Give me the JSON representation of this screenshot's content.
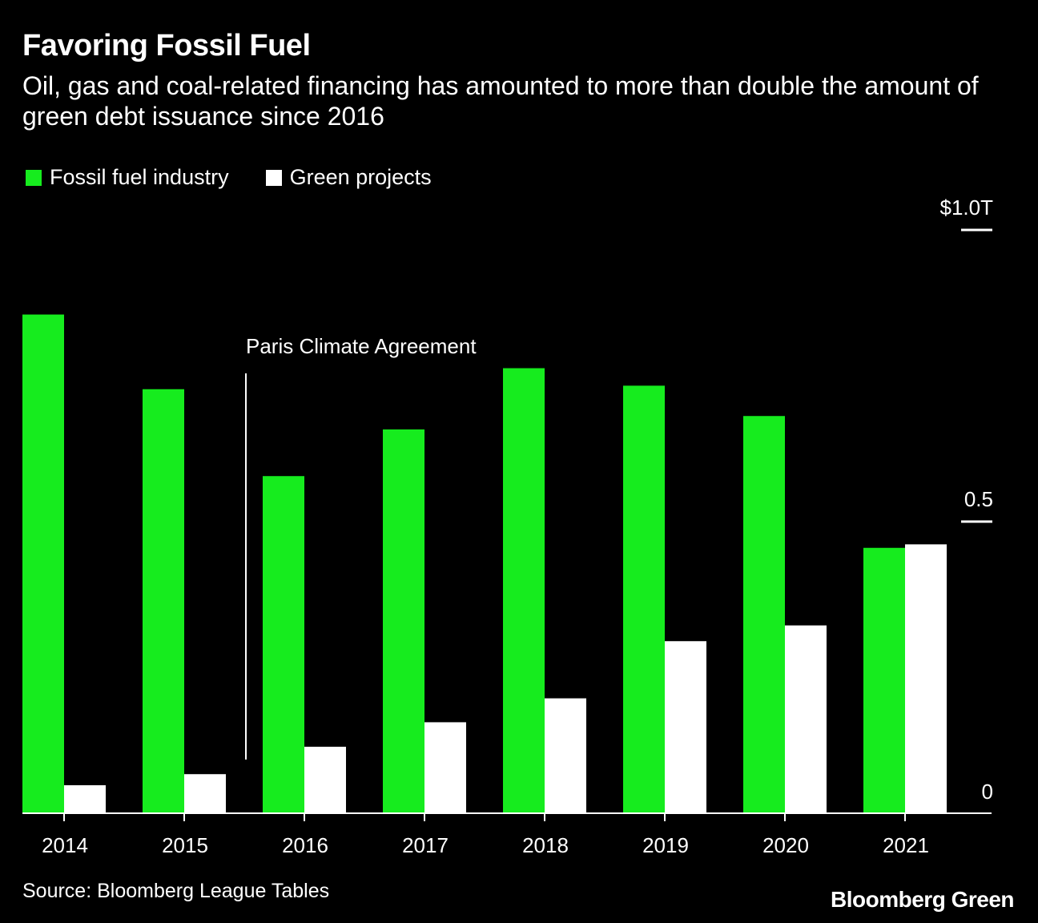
{
  "title": "Favoring Fossil Fuel",
  "subtitle": "Oil, gas and coal-related financing has amounted to more than double the amount of green debt issuance since 2016",
  "source": "Source: Bloomberg League Tables",
  "brand": "Bloomberg Green",
  "colors": {
    "fossil": "#16ec1e",
    "green": "#ffffff",
    "background": "#000000",
    "text": "#ffffff"
  },
  "chart_data": {
    "type": "bar",
    "title": "Favoring Fossil Fuel",
    "xlabel": "",
    "ylabel": "",
    "ylim": [
      0,
      1.0
    ],
    "y_ticks": [
      {
        "value": 0,
        "label": "0"
      },
      {
        "value": 0.5,
        "label": "0.5"
      },
      {
        "value": 1.0,
        "label": "$1.0T"
      }
    ],
    "categories": [
      "2014",
      "2015",
      "2016",
      "2017",
      "2018",
      "2019",
      "2020",
      "2021"
    ],
    "series": [
      {
        "name": "Fossil fuel industry",
        "color": "#16ec1e",
        "values": [
          0.855,
          0.727,
          0.578,
          0.658,
          0.763,
          0.733,
          0.681,
          0.455
        ]
      },
      {
        "name": "Green projects",
        "color": "#ffffff",
        "values": [
          0.048,
          0.067,
          0.114,
          0.156,
          0.197,
          0.295,
          0.322,
          0.461
        ]
      }
    ],
    "annotation": {
      "text": "Paris Climate Agreement",
      "x_position": 2015.5
    },
    "legend": "top-left",
    "grid": false
  }
}
